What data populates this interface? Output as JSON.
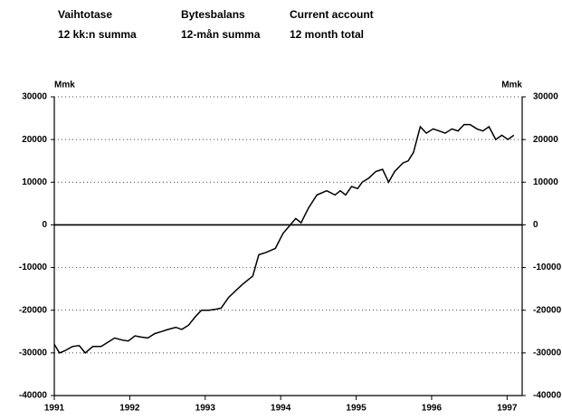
{
  "chart_data": {
    "type": "line",
    "headers": [
      [
        "Vaihtotase",
        "12 kk:n summa"
      ],
      [
        "Bytesbalans",
        "12-mån summa"
      ],
      [
        "Current account",
        "12 month total"
      ]
    ],
    "y_label": "Mmk",
    "y2_label": "Mmk",
    "x": [
      1991.0,
      1991.07,
      1991.14,
      1991.24,
      1991.33,
      1991.41,
      1991.51,
      1991.62,
      1991.71,
      1991.8,
      1991.9,
      1991.98,
      1992.07,
      1992.15,
      1992.24,
      1992.33,
      1992.42,
      1992.51,
      1992.61,
      1992.69,
      1992.78,
      1992.87,
      1992.95,
      1993.05,
      1993.13,
      1993.21,
      1993.31,
      1993.49,
      1993.63,
      1993.71,
      1993.8,
      1993.93,
      1994.03,
      1994.2,
      1994.27,
      1994.37,
      1994.48,
      1994.61,
      1994.72,
      1994.79,
      1994.86,
      1994.94,
      1995.02,
      1995.08,
      1995.17,
      1995.26,
      1995.35,
      1995.43,
      1995.51,
      1995.62,
      1995.69,
      1995.76,
      1995.85,
      1995.93,
      1996.02,
      1996.1,
      1996.18,
      1996.27,
      1996.35,
      1996.43,
      1996.51,
      1996.6,
      1996.68,
      1996.76,
      1996.85,
      1996.93,
      1997.01,
      1997.09
    ],
    "series": [
      {
        "name": "Current account",
        "color": "#000000",
        "values": [
          -28000,
          -30000,
          -29500,
          -28500,
          -28300,
          -30000,
          -28500,
          -28500,
          -27500,
          -26500,
          -27000,
          -27200,
          -26000,
          -26300,
          -26500,
          -25500,
          -25000,
          -24500,
          -24000,
          -24500,
          -23500,
          -21500,
          -20000,
          -20000,
          -19800,
          -19500,
          -17000,
          -14000,
          -12000,
          -7000,
          -6500,
          -5500,
          -2000,
          1500,
          500,
          4000,
          7000,
          8000,
          7000,
          8000,
          7000,
          9000,
          8500,
          10000,
          11000,
          12500,
          13000,
          10000,
          12500,
          14500,
          15000,
          17000,
          23000,
          21500,
          22500,
          22000,
          21500,
          22500,
          22000,
          23500,
          23500,
          22500,
          22000,
          23000,
          20000,
          21000,
          20000,
          21000
        ]
      }
    ],
    "xlim": [
      1991,
      1997.2
    ],
    "xticks": [
      1991,
      1992,
      1993,
      1994,
      1995,
      1996,
      1997
    ],
    "ylim": [
      -40000,
      30000
    ],
    "yticks": [
      -40000,
      -30000,
      -20000,
      -10000,
      0,
      10000,
      20000,
      30000
    ],
    "y2lim": [
      -40000,
      30000
    ],
    "y2ticks": [
      -40000,
      -30000,
      -20000,
      -10000,
      0,
      10000,
      20000,
      30000
    ],
    "grid": true
  }
}
